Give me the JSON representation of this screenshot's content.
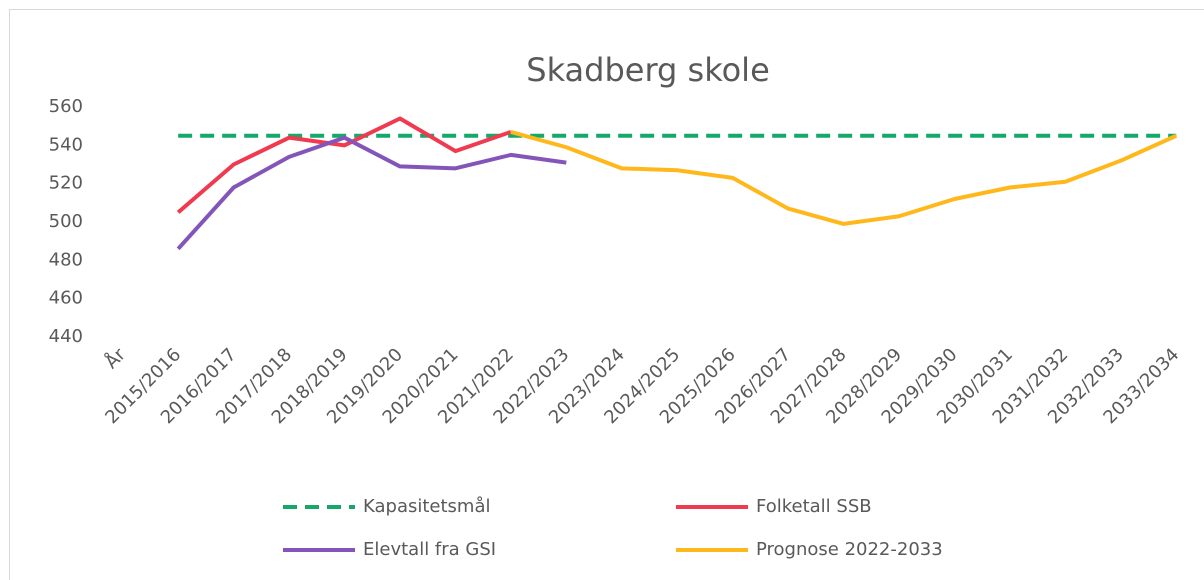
{
  "chart_data": {
    "type": "line",
    "title": "Skadberg skole",
    "categories": [
      "År",
      "2015/2016",
      "2016/2017",
      "2017/2018",
      "2018/2019",
      "2019/2020",
      "2020/2021",
      "2021/2022",
      "2022/2023",
      "2023/2024",
      "2024/2025",
      "2025/2026",
      "2026/2027",
      "2027/2028",
      "2028/2029",
      "2029/2030",
      "2030/2031",
      "2031/2032",
      "2032/2033",
      "2033/2034"
    ],
    "series": [
      {
        "name": "Kapasitetsmål",
        "color": "#14a86a",
        "dashed": true,
        "values": [
          null,
          545,
          545,
          545,
          545,
          545,
          545,
          545,
          545,
          545,
          545,
          545,
          545,
          545,
          545,
          545,
          545,
          545,
          545,
          545
        ]
      },
      {
        "name": "Folketall SSB",
        "color": "#ef3a4f",
        "dashed": false,
        "values": [
          null,
          505,
          530,
          544,
          540,
          554,
          537,
          547,
          null,
          null,
          null,
          null,
          null,
          null,
          null,
          null,
          null,
          null,
          null,
          null
        ]
      },
      {
        "name": "Elevtall fra GSI",
        "color": "#8455b9",
        "dashed": false,
        "values": [
          null,
          486,
          518,
          534,
          544,
          529,
          528,
          535,
          531,
          null,
          null,
          null,
          null,
          null,
          null,
          null,
          null,
          null,
          null,
          null
        ]
      },
      {
        "name": "Prognose 2022-2033",
        "color": "#ffb81c",
        "dashed": false,
        "values": [
          null,
          null,
          null,
          null,
          null,
          null,
          null,
          547,
          539,
          528,
          527,
          523,
          507,
          499,
          503,
          512,
          518,
          521,
          532,
          545
        ]
      }
    ],
    "ylim": [
      440,
      560
    ],
    "yticks": [
      440,
      460,
      480,
      500,
      520,
      540,
      560
    ],
    "grid": false
  }
}
